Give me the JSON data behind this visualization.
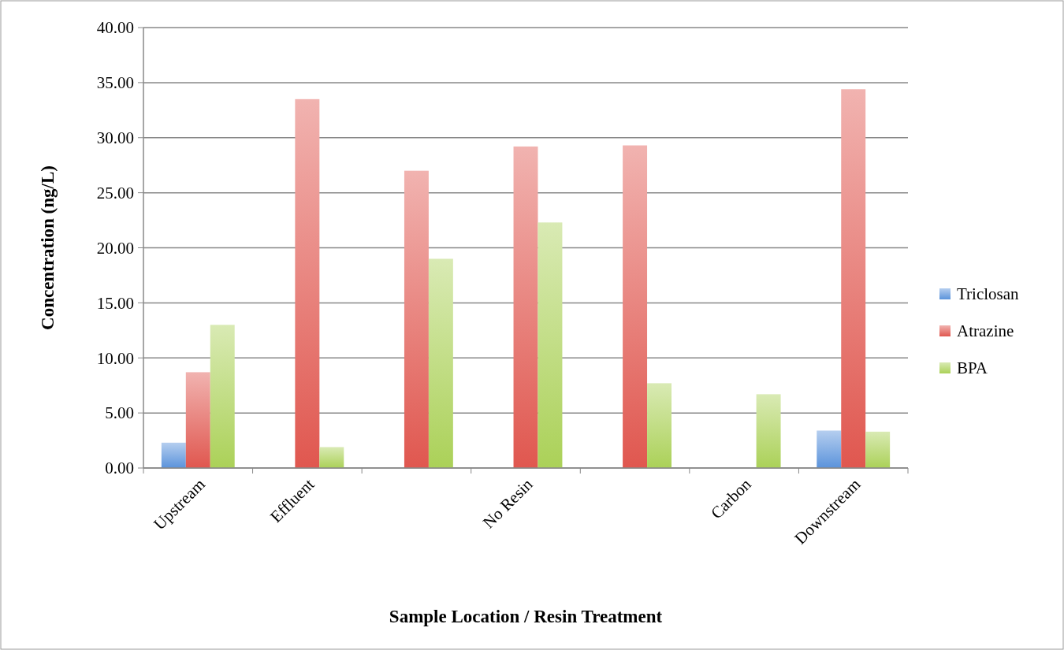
{
  "chart_data": {
    "type": "bar",
    "xlabel": "Sample Location / Resin Treatment",
    "ylabel": "Concentration (ng/L)",
    "categories": [
      "Upstream",
      "Effluent",
      null,
      "No Resin",
      null,
      "Carbon",
      "Downstream"
    ],
    "series": [
      {
        "name": "Triclosan",
        "color": "#5b93db",
        "values": [
          2.3,
          0,
          0,
          0,
          0,
          0,
          3.4
        ]
      },
      {
        "name": "Atrazine",
        "color": "#e0574f",
        "values": [
          8.7,
          33.5,
          27.0,
          29.2,
          29.3,
          0,
          34.4
        ]
      },
      {
        "name": "BPA",
        "color": "#abd158",
        "values": [
          13.0,
          1.9,
          19.0,
          22.3,
          7.7,
          6.7,
          3.3
        ]
      }
    ],
    "ylim": [
      0,
      40
    ],
    "yticks": [
      {
        "value": 0,
        "label": "0.00"
      },
      {
        "value": 5,
        "label": "5.00"
      },
      {
        "value": 10,
        "label": "10.00"
      },
      {
        "value": 15,
        "label": "15.00"
      },
      {
        "value": 20,
        "label": "20.00"
      },
      {
        "value": 25,
        "label": "25.00"
      },
      {
        "value": 30,
        "label": "30.00"
      },
      {
        "value": 35,
        "label": "35.00"
      },
      {
        "value": 40,
        "label": "40.00"
      }
    ],
    "grid": "y",
    "legend": "right"
  }
}
